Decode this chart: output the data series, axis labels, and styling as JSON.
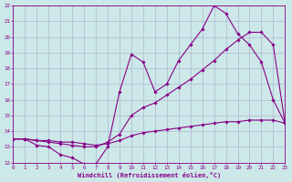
{
  "background_color": "#cce8e8",
  "grid_color": "#aaaacc",
  "line_color": "#880088",
  "xlim": [
    0,
    23
  ],
  "ylim": [
    12,
    22
  ],
  "xtick_labels": [
    "0",
    "1",
    "2",
    "3",
    "4",
    "5",
    "6",
    "7",
    "8",
    "9",
    "10",
    "11",
    "12",
    "13",
    "14",
    "15",
    "16",
    "17",
    "18",
    "19",
    "20",
    "21",
    "22",
    "23"
  ],
  "ytick_labels": [
    "12",
    "13",
    "14",
    "15",
    "16",
    "17",
    "18",
    "19",
    "20",
    "21",
    "22"
  ],
  "xlabel": "Windchill (Refroidissement éolien,°C)",
  "series1_x": [
    0,
    1,
    2,
    3,
    4,
    5,
    6,
    7,
    8,
    9,
    10,
    11,
    12,
    13,
    14,
    15,
    16,
    17,
    18,
    19,
    20,
    21,
    22,
    23
  ],
  "series1_y": [
    13.5,
    13.5,
    13.1,
    13.0,
    12.5,
    12.3,
    11.9,
    11.9,
    13.0,
    16.5,
    18.9,
    18.4,
    16.5,
    17.0,
    18.5,
    19.5,
    20.5,
    22.0,
    21.5,
    20.2,
    19.5,
    18.4,
    16.0,
    14.5
  ],
  "series2_x": [
    0,
    1,
    2,
    3,
    4,
    5,
    6,
    7,
    8,
    9,
    10,
    11,
    12,
    13,
    14,
    15,
    16,
    17,
    18,
    19,
    20,
    21,
    22,
    23
  ],
  "series2_y": [
    13.5,
    13.5,
    13.4,
    13.3,
    13.2,
    13.1,
    13.0,
    13.0,
    13.3,
    13.8,
    15.0,
    15.5,
    15.8,
    16.3,
    16.8,
    17.3,
    17.9,
    18.5,
    19.2,
    19.8,
    20.3,
    20.3,
    19.5,
    14.5
  ],
  "series3_x": [
    0,
    1,
    2,
    3,
    4,
    5,
    6,
    7,
    8,
    9,
    10,
    11,
    12,
    13,
    14,
    15,
    16,
    17,
    18,
    19,
    20,
    21,
    22,
    23
  ],
  "series3_y": [
    13.5,
    13.5,
    13.4,
    13.4,
    13.3,
    13.3,
    13.2,
    13.1,
    13.2,
    13.4,
    13.7,
    13.9,
    14.0,
    14.1,
    14.2,
    14.3,
    14.4,
    14.5,
    14.6,
    14.6,
    14.7,
    14.7,
    14.7,
    14.5
  ]
}
